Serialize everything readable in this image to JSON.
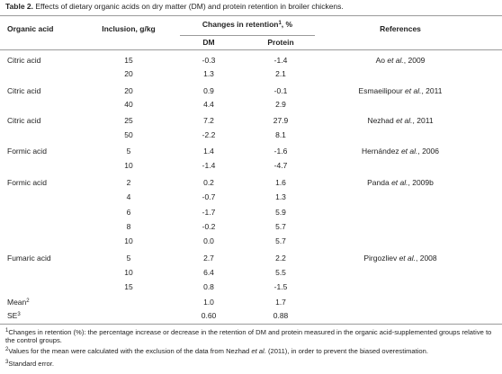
{
  "title": [
    "Table 2.",
    " Effects of dietary organic acids on dry matter (DM) and protein retention in broiler chickens."
  ],
  "header": {
    "organic_acid": "Organic acid",
    "inclusion": "Inclusion, g/kg",
    "changes": [
      "Changes in retention",
      "1",
      ", %"
    ],
    "dm": "DM",
    "protein": "Protein",
    "references": "References"
  },
  "rows": [
    [
      "Citric acid",
      "15",
      "-0.3",
      "-1.4",
      [
        "Ao ",
        "et al.",
        ", 2009"
      ]
    ],
    [
      null,
      "20",
      "1.3",
      "2.1",
      null
    ],
    [
      "Citric acid",
      "20",
      "0.9",
      "-0.1",
      [
        "Esmaeilipour ",
        "et al.",
        ", 2011"
      ]
    ],
    [
      null,
      "40",
      "4.4",
      "2.9",
      null
    ],
    [
      "Citric acid",
      "25",
      "7.2",
      "27.9",
      [
        "Nezhad ",
        "et al.",
        ", 2011"
      ]
    ],
    [
      null,
      "50",
      "-2.2",
      "8.1",
      null
    ],
    [
      "Formic acid",
      "5",
      "1.4",
      "-1.6",
      [
        "Hernández ",
        "et al.",
        ", 2006"
      ]
    ],
    [
      null,
      "10",
      "-1.4",
      "-4.7",
      null
    ],
    [
      "Formic acid",
      "2",
      "0.2",
      "1.6",
      [
        "Panda ",
        "et al.",
        ", 2009b"
      ]
    ],
    [
      null,
      "4",
      "-0.7",
      "1.3",
      null
    ],
    [
      null,
      "6",
      "-1.7",
      "5.9",
      null
    ],
    [
      null,
      "8",
      "-0.2",
      "5.7",
      null
    ],
    [
      null,
      "10",
      "0.0",
      "5.7",
      null
    ],
    [
      "Fumaric acid",
      "5",
      "2.7",
      "2.2",
      [
        "Pirgozliev ",
        "et al.",
        ", 2008"
      ]
    ],
    [
      null,
      "10",
      "6.4",
      "5.5",
      null
    ],
    [
      null,
      "15",
      "0.8",
      "-1.5",
      null
    ]
  ],
  "summary": [
    {
      "label": [
        "Mean",
        "2"
      ],
      "dm": "1.0",
      "protein": "1.7"
    },
    {
      "label": [
        "SE",
        "3"
      ],
      "dm": "0.60",
      "protein": "0.88"
    }
  ],
  "footnotes": [
    [
      "1",
      "Changes in retention (%): the percentage increase or decrease in the retention of DM and protein measured in the organic acid-supplemented groups relative to the control groups."
    ],
    [
      "2",
      "Values for the mean were calculated with the exclusion of the data from Nezhad ",
      "et al.",
      " (2011), in order to prevent the biased overestimation."
    ],
    [
      "3",
      "Standard error."
    ]
  ]
}
